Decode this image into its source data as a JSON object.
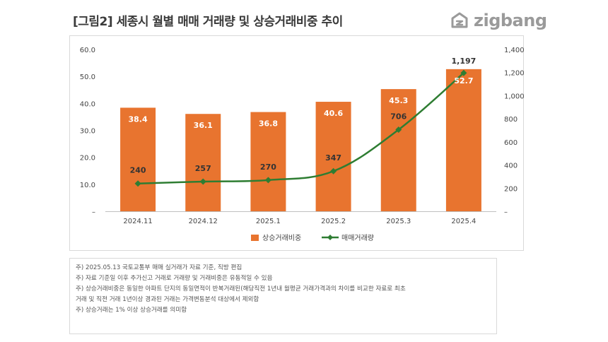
{
  "figure_title": "[그림2] 세종시 월별 매매 거래량 및 상승거래비중 추이",
  "logo": {
    "text": "zigbang",
    "icon": "zigbang-logo-icon"
  },
  "colors": {
    "bar": "#E8742F",
    "line": "#2E7D32",
    "axis_text": "#444444",
    "grid": "#cccccc"
  },
  "chart_data": {
    "type": "bar",
    "categories": [
      "2024.11",
      "2024.12",
      "2025.1",
      "2025.2",
      "2025.3",
      "2025.4"
    ],
    "series": [
      {
        "name": "상승거래비중",
        "type": "bar",
        "axis": "left",
        "values": [
          38.4,
          36.1,
          36.8,
          40.6,
          45.3,
          52.7
        ],
        "labels": [
          "38.4",
          "36.1",
          "36.8",
          "40.6",
          "45.3",
          "52.7"
        ]
      },
      {
        "name": "매매거래량",
        "type": "line",
        "axis": "right",
        "values": [
          240,
          257,
          270,
          347,
          706,
          1197
        ],
        "labels": [
          "240",
          "257",
          "270",
          "347",
          "706",
          "1,197"
        ]
      }
    ],
    "y_left": {
      "ylim": [
        0,
        60
      ],
      "ticks": [
        "–",
        "10.0",
        "20.0",
        "30.0",
        "40.0",
        "50.0",
        "60.0"
      ]
    },
    "y_right": {
      "ylim": [
        0,
        1400
      ],
      "ticks": [
        "–",
        "200",
        "400",
        "600",
        "800",
        "1,000",
        "1,200",
        "1,400"
      ]
    },
    "legend": {
      "placement": "bottom"
    },
    "grid": false
  },
  "notes": [
    "주) 2025.05.13 국토교통부 매매 실거래가 자료 기준, 직방 편집",
    "주) 자료 기준일 이후 추가신고 거래로 거래량 및 거래비중은 유동적일 수 있음",
    "주) 상승거래비중은 동일한 아파트 단지의 동일면적이 반복거래된(해당직전 1년내 월평균 거래가격과의 차이를 비교한 자료로 최초",
    "거래 및 직전 거래 1년이상 경과된 거래는 가격변동분석 대상에서 제외함",
    "주) 상승거래는 1% 이상 상승거래를 의미함"
  ]
}
